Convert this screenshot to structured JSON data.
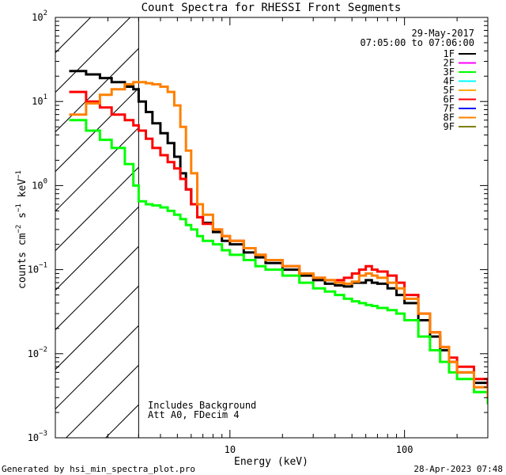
{
  "chart_data": {
    "type": "line",
    "title": "Count Spectra for RHESSI Front Segments",
    "xlabel": "Energy (keV)",
    "ylabel": "counts cm-2 s-1 keV-1",
    "ylabel_parts": {
      "base": "counts cm",
      "exp1": "−2",
      "mid": " s",
      "exp2": "−1",
      "end": " keV",
      "exp3": "−1"
    },
    "x_scale": "log",
    "y_scale": "log",
    "xlim": [
      1,
      300
    ],
    "ylim": [
      0.001,
      100
    ],
    "x_ticks": [
      {
        "value": 10,
        "label": "10"
      },
      {
        "value": 100,
        "label": "100"
      }
    ],
    "y_ticks": [
      {
        "value": 0.001,
        "base": "10",
        "exp": "−3"
      },
      {
        "value": 0.01,
        "base": "10",
        "exp": "−2"
      },
      {
        "value": 0.1,
        "base": "10",
        "exp": "−1"
      },
      {
        "value": 1,
        "base": "10",
        "exp": "0"
      },
      {
        "value": 10,
        "base": "10",
        "exp": "1"
      },
      {
        "value": 100,
        "base": "10",
        "exp": "2"
      }
    ],
    "hatched_region": {
      "x_from": 1,
      "x_to": 3
    },
    "date_text": "29-May-2017",
    "time_range_text": "07:05:00 to 07:06:00",
    "annotations": [
      "Includes Background",
      "Att A0, FDecim 4"
    ],
    "footer_left": "Generated by hsi_min_spectra_plot.pro",
    "footer_right": "28-Apr-2023 07:48",
    "legend": [
      {
        "label": "1F",
        "color": "#000000"
      },
      {
        "label": "2F",
        "color": "#ff00ff"
      },
      {
        "label": "3F",
        "color": "#00ff00"
      },
      {
        "label": "4F",
        "color": "#00ffff"
      },
      {
        "label": "5F",
        "color": "#ffaa00"
      },
      {
        "label": "6F",
        "color": "#ff0000"
      },
      {
        "label": "7F",
        "color": "#0000ff"
      },
      {
        "label": "8F",
        "color": "#ff8000"
      },
      {
        "label": "9F",
        "color": "#808000"
      }
    ],
    "series": [
      {
        "name": "1F",
        "color": "#000000",
        "x": [
          1.2,
          1.5,
          1.8,
          2.1,
          2.5,
          2.8,
          3.0,
          3.3,
          3.6,
          4.0,
          4.4,
          4.8,
          5.2,
          5.6,
          6.0,
          6.5,
          7,
          8,
          9,
          10,
          12,
          14,
          16,
          20,
          25,
          30,
          35,
          40,
          45,
          50,
          55,
          60,
          65,
          70,
          80,
          90,
          100,
          120,
          140,
          160,
          180,
          200,
          250,
          300
        ],
        "y": [
          23,
          21,
          19,
          17,
          15,
          14,
          10,
          7.5,
          5.5,
          4.2,
          3.2,
          2.2,
          1.4,
          0.9,
          0.6,
          0.42,
          0.36,
          0.28,
          0.22,
          0.2,
          0.16,
          0.14,
          0.12,
          0.1,
          0.085,
          0.075,
          0.068,
          0.065,
          0.063,
          0.07,
          0.07,
          0.075,
          0.07,
          0.068,
          0.06,
          0.05,
          0.04,
          0.025,
          0.016,
          0.011,
          0.008,
          0.006,
          0.0045,
          0.003
        ]
      },
      {
        "name": "3F",
        "color": "#00ff00",
        "x": [
          1.2,
          1.5,
          1.8,
          2.1,
          2.5,
          2.8,
          3.0,
          3.3,
          3.6,
          4.0,
          4.4,
          4.8,
          5.2,
          5.6,
          6.0,
          6.5,
          7,
          8,
          9,
          10,
          12,
          14,
          16,
          20,
          25,
          30,
          35,
          40,
          45,
          50,
          55,
          60,
          65,
          70,
          80,
          90,
          100,
          120,
          140,
          160,
          180,
          200,
          250,
          300
        ],
        "y": [
          6,
          4.5,
          3.5,
          2.8,
          1.8,
          1.0,
          0.65,
          0.6,
          0.58,
          0.55,
          0.5,
          0.45,
          0.4,
          0.34,
          0.3,
          0.25,
          0.22,
          0.2,
          0.17,
          0.15,
          0.13,
          0.11,
          0.1,
          0.085,
          0.07,
          0.06,
          0.055,
          0.05,
          0.045,
          0.042,
          0.04,
          0.038,
          0.037,
          0.035,
          0.033,
          0.03,
          0.025,
          0.016,
          0.011,
          0.008,
          0.006,
          0.005,
          0.0035,
          0.0025
        ]
      },
      {
        "name": "6F",
        "color": "#ff0000",
        "x": [
          1.2,
          1.5,
          1.8,
          2.1,
          2.5,
          2.8,
          3.0,
          3.3,
          3.6,
          4.0,
          4.4,
          4.8,
          5.2,
          5.6,
          6.0,
          6.5,
          7,
          8,
          9,
          10,
          12,
          14,
          16,
          20,
          25,
          30,
          35,
          40,
          45,
          50,
          55,
          60,
          65,
          70,
          80,
          90,
          100,
          120,
          140,
          160,
          180,
          200,
          250,
          300
        ],
        "y": [
          13,
          10,
          8.5,
          7,
          6,
          5.2,
          4.5,
          3.6,
          2.8,
          2.3,
          1.9,
          1.6,
          1.2,
          0.9,
          0.6,
          0.42,
          0.35,
          0.3,
          0.25,
          0.22,
          0.18,
          0.15,
          0.13,
          0.11,
          0.09,
          0.08,
          0.075,
          0.075,
          0.08,
          0.09,
          0.1,
          0.11,
          0.1,
          0.095,
          0.085,
          0.07,
          0.05,
          0.03,
          0.018,
          0.012,
          0.009,
          0.007,
          0.005,
          0.0035
        ]
      },
      {
        "name": "8F",
        "color": "#ff8000",
        "x": [
          1.2,
          1.5,
          1.8,
          2.1,
          2.5,
          2.8,
          3.0,
          3.3,
          3.6,
          4.0,
          4.4,
          4.8,
          5.2,
          5.6,
          6.0,
          6.5,
          7,
          8,
          9,
          10,
          12,
          14,
          16,
          20,
          25,
          30,
          35,
          40,
          45,
          50,
          55,
          60,
          65,
          70,
          80,
          90,
          100,
          120,
          140,
          160,
          180,
          200,
          250,
          300
        ],
        "y": [
          7,
          9.5,
          12,
          14,
          16,
          17,
          17,
          16.5,
          16,
          15,
          13,
          9,
          5,
          2.6,
          1.4,
          0.6,
          0.45,
          0.3,
          0.25,
          0.22,
          0.18,
          0.15,
          0.13,
          0.11,
          0.09,
          0.08,
          0.075,
          0.07,
          0.068,
          0.072,
          0.085,
          0.09,
          0.085,
          0.08,
          0.07,
          0.06,
          0.045,
          0.03,
          0.018,
          0.012,
          0.008,
          0.006,
          0.004,
          0.003
        ]
      }
    ]
  }
}
